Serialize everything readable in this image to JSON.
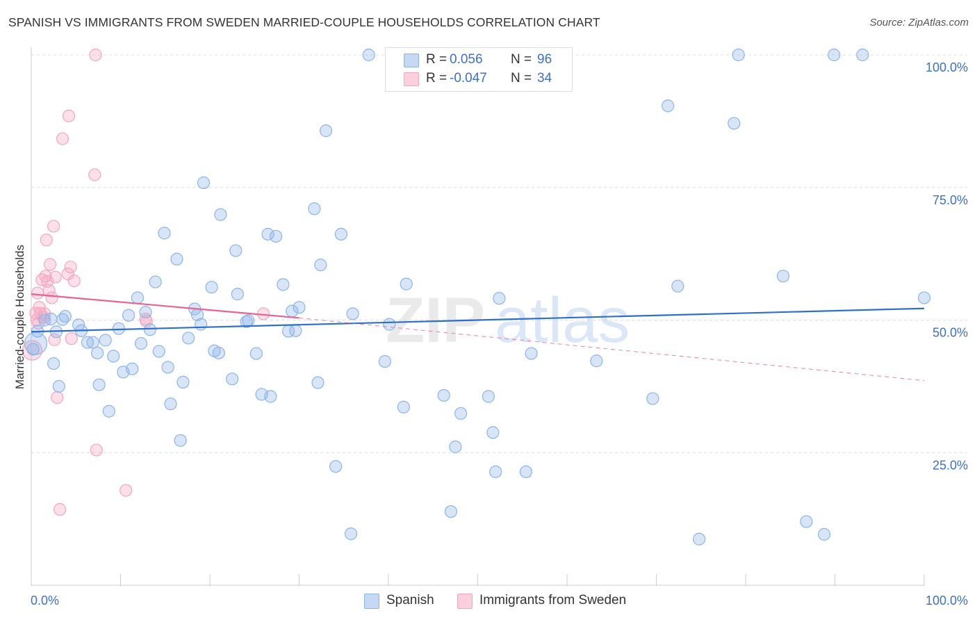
{
  "header": {
    "title": "SPANISH VS IMMIGRANTS FROM SWEDEN MARRIED-COUPLE HOUSEHOLDS CORRELATION CHART",
    "source": "Source: ZipAtlas.com"
  },
  "watermark": {
    "zip": "ZIP",
    "atlas": "atlas"
  },
  "legend_top": {
    "rows": [
      {
        "swatch_color": "#aecbf2",
        "r_label": "R =",
        "r_value": "0.056",
        "n_label": "N =",
        "n_value": "96"
      },
      {
        "swatch_color": "#f8bfd0",
        "r_label": "R =",
        "r_value": "-0.047",
        "n_label": "N =",
        "n_value": "34"
      }
    ]
  },
  "legend_bottom": {
    "items": [
      {
        "label": "Spanish",
        "color": "#aecbf2"
      },
      {
        "label": "Immigrants from Sweden",
        "color": "#f8bfd0"
      }
    ]
  },
  "chart_data": {
    "type": "scatter",
    "ylabel": "Married-couple Households",
    "xlabel": "",
    "xlim": [
      0,
      100
    ],
    "ylim": [
      0,
      100
    ],
    "x_tick_labels": [
      "0.0%",
      "100.0%"
    ],
    "y_tick_values": [
      25,
      50,
      75,
      100
    ],
    "y_tick_labels": [
      "25.0%",
      "50.0%",
      "75.0%",
      "100.0%"
    ],
    "grid": true,
    "series": [
      {
        "name": "Spanish",
        "color": "#8db4e8",
        "line_color": "#2e6fcc",
        "trend": {
          "x0": 0,
          "y0": 47.8,
          "x1": 100,
          "y1": 52.2
        },
        "points": [
          [
            0.5,
            45.6
          ],
          [
            1.5,
            50.0
          ],
          [
            2.2,
            50.2
          ],
          [
            2.5,
            41.8
          ],
          [
            2.8,
            47.8
          ],
          [
            3.1,
            37.5
          ],
          [
            3.5,
            50.1
          ],
          [
            3.8,
            50.7
          ],
          [
            5.3,
            49.1
          ],
          [
            5.6,
            48.0
          ],
          [
            6.3,
            45.8
          ],
          [
            6.9,
            45.8
          ],
          [
            7.4,
            43.8
          ],
          [
            7.6,
            37.8
          ],
          [
            8.3,
            46.2
          ],
          [
            8.7,
            32.8
          ],
          [
            9.2,
            43.2
          ],
          [
            9.8,
            48.4
          ],
          [
            10.3,
            40.2
          ],
          [
            10.9,
            50.9
          ],
          [
            11.3,
            40.8
          ],
          [
            11.9,
            54.2
          ],
          [
            12.3,
            45.6
          ],
          [
            12.8,
            51.5
          ],
          [
            13.3,
            48.2
          ],
          [
            13.9,
            57.2
          ],
          [
            14.3,
            44.1
          ],
          [
            14.9,
            66.4
          ],
          [
            15.3,
            41.1
          ],
          [
            15.6,
            34.2
          ],
          [
            16.3,
            61.5
          ],
          [
            16.7,
            27.3
          ],
          [
            17.0,
            38.3
          ],
          [
            17.6,
            46.6
          ],
          [
            18.3,
            52.1
          ],
          [
            18.6,
            51.0
          ],
          [
            19.0,
            49.2
          ],
          [
            19.3,
            75.9
          ],
          [
            20.2,
            56.2
          ],
          [
            20.5,
            44.2
          ],
          [
            21.0,
            43.8
          ],
          [
            21.2,
            69.9
          ],
          [
            22.5,
            38.9
          ],
          [
            22.9,
            63.1
          ],
          [
            23.1,
            54.9
          ],
          [
            24.1,
            49.7
          ],
          [
            24.3,
            49.9
          ],
          [
            25.2,
            43.7
          ],
          [
            25.8,
            36.0
          ],
          [
            26.5,
            66.2
          ],
          [
            26.8,
            35.6
          ],
          [
            27.4,
            65.8
          ],
          [
            28.2,
            56.7
          ],
          [
            28.8,
            47.9
          ],
          [
            29.2,
            51.7
          ],
          [
            29.6,
            48.0
          ],
          [
            30.0,
            52.4
          ],
          [
            31.7,
            71.0
          ],
          [
            32.1,
            38.2
          ],
          [
            32.4,
            60.4
          ],
          [
            33.0,
            85.7
          ],
          [
            34.1,
            22.4
          ],
          [
            34.7,
            66.2
          ],
          [
            35.8,
            9.7
          ],
          [
            36.0,
            51.2
          ],
          [
            37.8,
            100.0
          ],
          [
            39.6,
            42.2
          ],
          [
            40.1,
            49.2
          ],
          [
            41.7,
            33.6
          ],
          [
            42.0,
            56.8
          ],
          [
            46.2,
            35.8
          ],
          [
            47.0,
            13.9
          ],
          [
            47.5,
            26.1
          ],
          [
            48.1,
            32.4
          ],
          [
            51.2,
            35.6
          ],
          [
            51.7,
            28.8
          ],
          [
            52.0,
            21.4
          ],
          [
            52.4,
            54.1
          ],
          [
            55.4,
            21.4
          ],
          [
            56.0,
            43.7
          ],
          [
            58.3,
            98.5
          ],
          [
            63.3,
            42.3
          ],
          [
            69.6,
            35.2
          ],
          [
            71.3,
            90.4
          ],
          [
            72.4,
            56.4
          ],
          [
            74.8,
            8.7
          ],
          [
            78.7,
            87.1
          ],
          [
            79.2,
            100.0
          ],
          [
            84.2,
            58.3
          ],
          [
            86.8,
            12.0
          ],
          [
            88.8,
            9.6
          ],
          [
            89.9,
            100.0
          ],
          [
            93.1,
            100.0
          ],
          [
            100.0,
            54.2
          ],
          [
            0.2,
            44.5
          ],
          [
            0.7,
            47.9
          ]
        ]
      },
      {
        "name": "Immigrants from Sweden",
        "color": "#f4a6bf",
        "line_color": "#e8638f",
        "trend": {
          "x0": 0,
          "y0": 54.9,
          "x1": 30,
          "y1": 50.4,
          "dash_x1": 100,
          "dash_y1": 38.6
        },
        "points": [
          [
            0.1,
            44.3
          ],
          [
            0.5,
            51.3
          ],
          [
            0.6,
            50.0
          ],
          [
            0.7,
            55.1
          ],
          [
            0.8,
            49.4
          ],
          [
            0.9,
            52.4
          ],
          [
            1.0,
            51.3
          ],
          [
            1.2,
            57.6
          ],
          [
            1.4,
            50.5
          ],
          [
            1.5,
            51.2
          ],
          [
            1.6,
            58.3
          ],
          [
            1.8,
            57.3
          ],
          [
            1.7,
            65.1
          ],
          [
            2.0,
            55.6
          ],
          [
            2.1,
            60.5
          ],
          [
            2.3,
            54.2
          ],
          [
            2.5,
            67.7
          ],
          [
            2.7,
            58.1
          ],
          [
            2.6,
            46.3
          ],
          [
            2.9,
            35.4
          ],
          [
            3.2,
            14.3
          ],
          [
            3.5,
            84.2
          ],
          [
            4.1,
            58.7
          ],
          [
            4.2,
            88.5
          ],
          [
            4.4,
            60.0
          ],
          [
            4.5,
            46.5
          ],
          [
            4.8,
            57.4
          ],
          [
            7.1,
            77.4
          ],
          [
            7.2,
            100.0
          ],
          [
            7.3,
            25.5
          ],
          [
            10.6,
            17.9
          ],
          [
            12.8,
            50.2
          ],
          [
            12.9,
            49.8
          ],
          [
            26.0,
            51.2
          ]
        ]
      }
    ]
  }
}
